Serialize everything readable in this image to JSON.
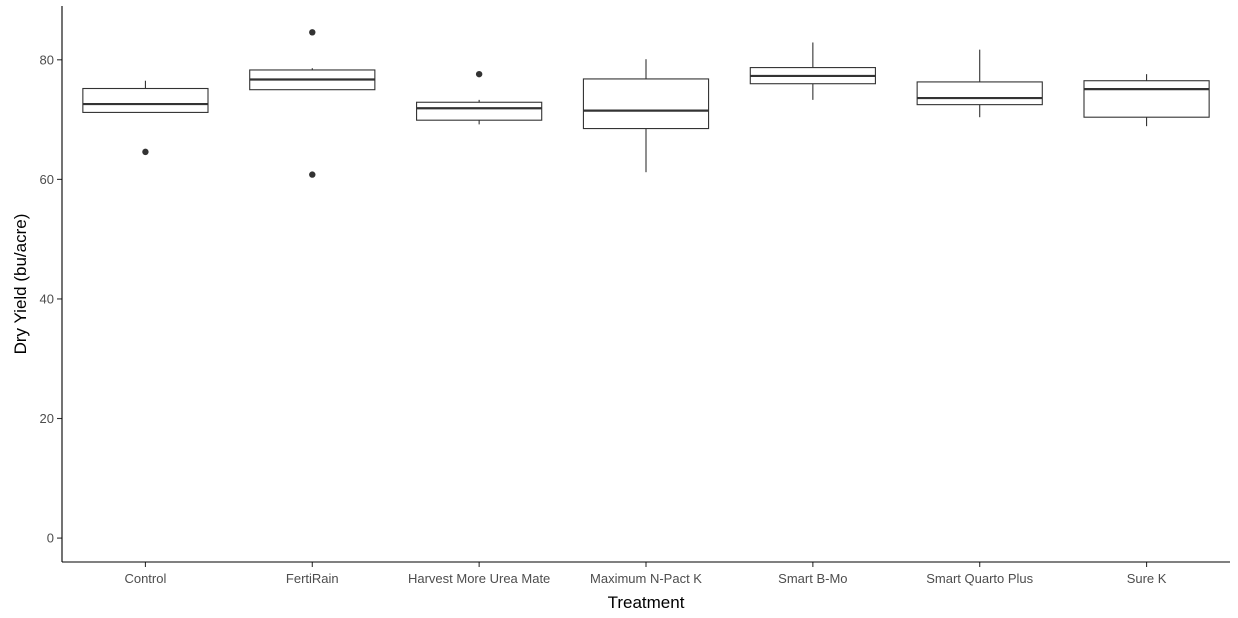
{
  "chart_data": {
    "type": "boxplot",
    "title": "",
    "xlabel": "Treatment",
    "ylabel": "Dry Yield (bu/acre)",
    "ylim": [
      -4,
      89
    ],
    "yticks": [
      0,
      20,
      40,
      60,
      80
    ],
    "grid": false,
    "legend": "none",
    "categories": [
      "Control",
      "FertiRain",
      "Harvest More Urea Mate",
      "Maximum N-Pact K",
      "Smart B-Mo",
      "Smart Quarto Plus",
      "Sure K"
    ],
    "series": [
      {
        "category": "Control",
        "whisker_low": 71.2,
        "q1": 71.2,
        "median": 72.6,
        "q3": 75.2,
        "whisker_high": 76.5,
        "outliers": [
          64.6
        ]
      },
      {
        "category": "FertiRain",
        "whisker_low": 75.0,
        "q1": 75.0,
        "median": 76.7,
        "q3": 78.3,
        "whisker_high": 78.6,
        "outliers": [
          84.6,
          60.8
        ]
      },
      {
        "category": "Harvest More Urea Mate",
        "whisker_low": 69.2,
        "q1": 69.9,
        "median": 71.9,
        "q3": 72.9,
        "whisker_high": 73.3,
        "outliers": [
          77.6
        ]
      },
      {
        "category": "Maximum N-Pact K",
        "whisker_low": 61.2,
        "q1": 68.5,
        "median": 71.5,
        "q3": 76.8,
        "whisker_high": 80.1,
        "outliers": []
      },
      {
        "category": "Smart B-Mo",
        "whisker_low": 73.3,
        "q1": 76.0,
        "median": 77.3,
        "q3": 78.7,
        "whisker_high": 82.9,
        "outliers": []
      },
      {
        "category": "Smart Quarto Plus",
        "whisker_low": 70.4,
        "q1": 72.5,
        "median": 73.6,
        "q3": 76.3,
        "whisker_high": 81.7,
        "outliers": []
      },
      {
        "category": "Sure K",
        "whisker_low": 68.9,
        "q1": 70.4,
        "median": 75.1,
        "q3": 76.5,
        "whisker_high": 77.6,
        "outliers": []
      }
    ],
    "colors": {
      "box_outline": "#333333",
      "box_fill": "#ffffff",
      "axis": "#000000",
      "tick_label": "#4d4d4d"
    }
  }
}
